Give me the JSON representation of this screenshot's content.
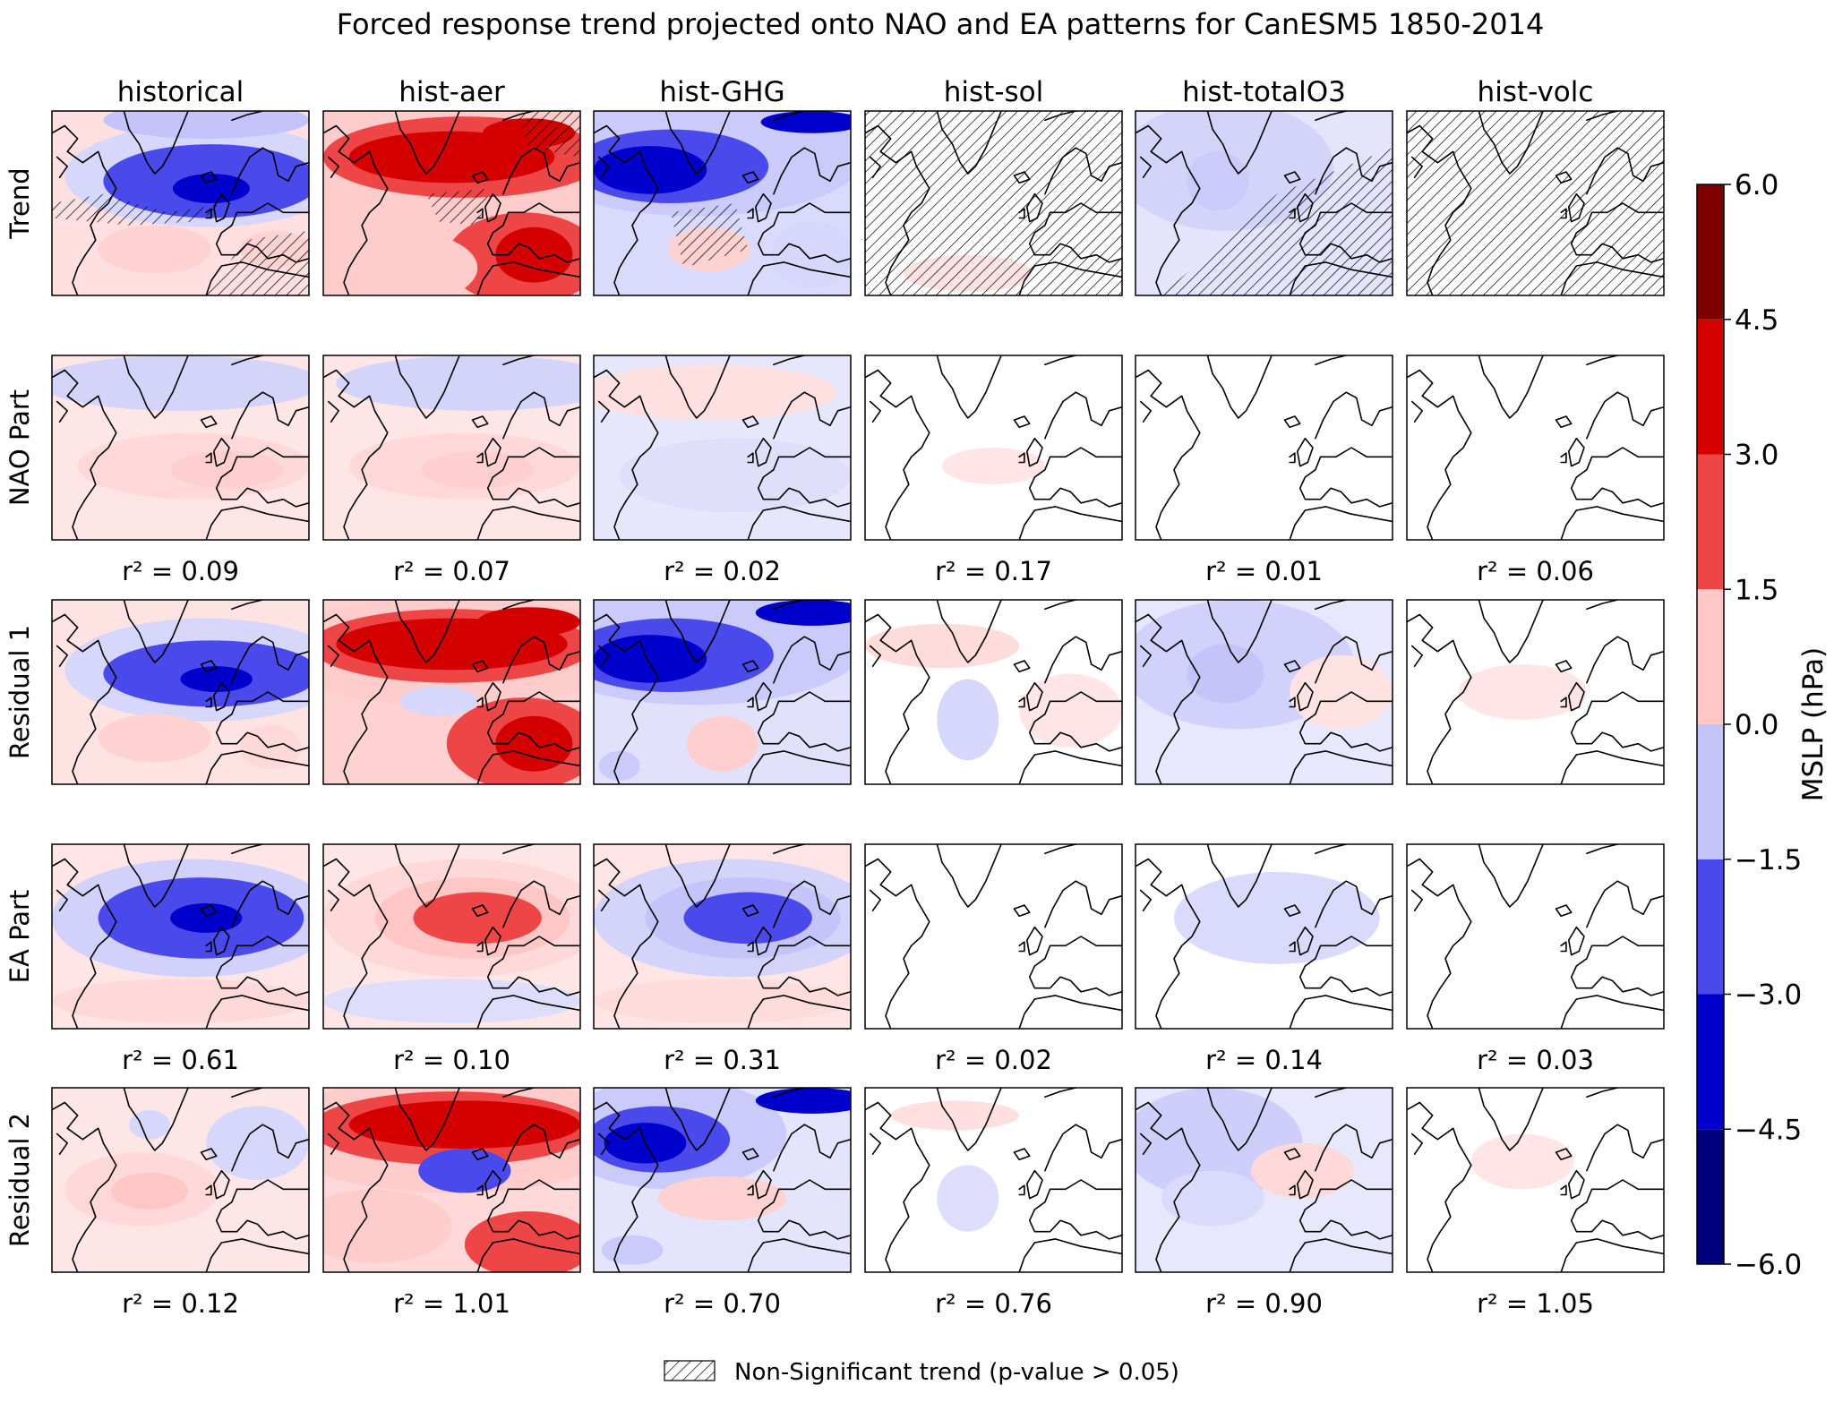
{
  "chart_data": {
    "type": "heatmap",
    "title": "Forced response trend projected onto NAO and EA patterns for CanESM5 1850-2014",
    "columns": [
      "historical",
      "hist-aer",
      "hist-GHG",
      "hist-sol",
      "hist-totalO3",
      "hist-volc"
    ],
    "rows": [
      "Trend",
      "NAO Part",
      "Residual 1",
      "EA Part",
      "Residual 2"
    ],
    "r2_prefix": "r² = ",
    "r2": {
      "NAO Part": [
        "0.09",
        "0.07",
        "0.02",
        "0.17",
        "0.01",
        "0.06"
      ],
      "EA Part": [
        "0.61",
        "0.10",
        "0.31",
        "0.02",
        "0.14",
        "0.03"
      ],
      "Residual 2": [
        "0.12",
        "1.01",
        "0.70",
        "0.76",
        "0.90",
        "1.05"
      ]
    },
    "colorbar": {
      "label": "MSLP (hPa)",
      "range": [
        -6.0,
        6.0
      ],
      "ticks": [
        "6.0",
        "4.5",
        "3.0",
        "1.5",
        "0.0",
        "−1.5",
        "−3.0",
        "−4.5",
        "−6.0"
      ],
      "levels": [
        -6.0,
        -4.5,
        -3.0,
        -1.5,
        0.0,
        1.5,
        3.0,
        4.5,
        6.0
      ],
      "colors": [
        "#00007a",
        "#0000cc",
        "#4a4aec",
        "#c4c4fa",
        "#ffc6c6",
        "#ee4646",
        "#d40000",
        "#7f0000"
      ]
    },
    "legend": {
      "label": "Non-Significant trend (p-value > 0.05)"
    },
    "approx_panel_ranges_hPa": {
      "Trend": [
        [
          -3.5,
          1.0
        ],
        [
          -1.0,
          4.0
        ],
        [
          -4.5,
          1.0
        ],
        [
          -0.3,
          0.3
        ],
        [
          -1.5,
          0.3
        ],
        [
          -0.2,
          0.2
        ]
      ],
      "NAO Part": [
        [
          -1.0,
          0.8
        ],
        [
          -1.0,
          0.8
        ],
        [
          -0.5,
          0.4
        ],
        [
          -0.2,
          0.2
        ],
        [
          -0.1,
          0.1
        ],
        [
          -0.1,
          0.1
        ]
      ],
      "Residual 1": [
        [
          -3.5,
          1.0
        ],
        [
          -1.0,
          4.5
        ],
        [
          -4.5,
          1.0
        ],
        [
          -0.8,
          0.6
        ],
        [
          -1.8,
          0.3
        ],
        [
          -0.3,
          0.3
        ]
      ],
      "EA Part": [
        [
          -3.5,
          1.0
        ],
        [
          -0.3,
          2.5
        ],
        [
          -3.0,
          0.6
        ],
        [
          -0.2,
          0.2
        ],
        [
          -1.0,
          0.1
        ],
        [
          -0.2,
          0.2
        ]
      ],
      "Residual 2": [
        [
          -1.0,
          1.8
        ],
        [
          -3.0,
          4.5
        ],
        [
          -4.5,
          1.5
        ],
        [
          -0.8,
          0.6
        ],
        [
          -2.0,
          1.0
        ],
        [
          -0.3,
          0.3
        ]
      ]
    }
  }
}
